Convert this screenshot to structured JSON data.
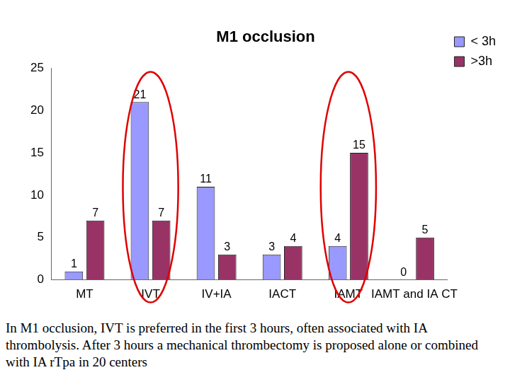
{
  "chart_data": {
    "type": "bar",
    "title": "M1 occlusion",
    "categories": [
      "MT",
      "IVT",
      "IV+IA",
      "IACT",
      "IAMT",
      "IAMT and IA CT"
    ],
    "series": [
      {
        "name": "< 3h",
        "color": "#9999ff",
        "values": [
          1,
          21,
          11,
          3,
          4,
          0
        ]
      },
      {
        "name": ">3h",
        "color": "#993366",
        "values": [
          7,
          7,
          3,
          4,
          15,
          5
        ]
      }
    ],
    "ylim": [
      0,
      25
    ],
    "yticks": [
      0,
      5,
      10,
      15,
      20,
      25
    ],
    "grid": false,
    "legend": "right",
    "data_labels": true
  },
  "caption": "In M1 occlusion, IVT is preferred in the first 3 hours, often associated with IA thrombolysis. After 3 hours a mechanical thrombectomy is proposed alone or combined with IA rTpa in 20 centers"
}
